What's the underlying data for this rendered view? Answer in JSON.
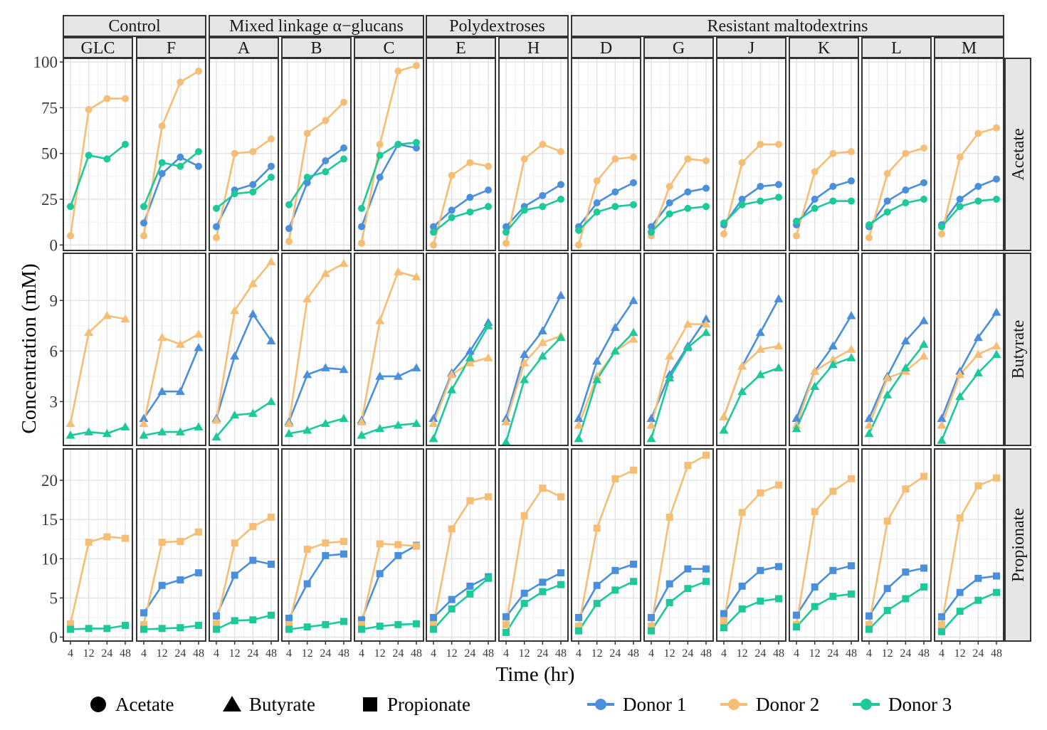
{
  "chart_data": {
    "type": "line",
    "xlabel": "Time (hr)",
    "ylabel": "Concentration (mM)",
    "x": [
      4,
      12,
      24,
      48
    ],
    "x_tick_labels": [
      "4",
      "12",
      "24",
      "48"
    ],
    "groups": [
      {
        "label": "Control",
        "columns": [
          "GLC",
          "F"
        ]
      },
      {
        "label": "Mixed linkage α−glucans",
        "columns": [
          "A",
          "B",
          "C"
        ]
      },
      {
        "label": "Polydextroses",
        "columns": [
          "E",
          "H"
        ]
      },
      {
        "label": "Resistant maltodextrins",
        "columns": [
          "D",
          "G",
          "J",
          "K",
          "L",
          "M"
        ]
      }
    ],
    "columns": [
      "GLC",
      "F",
      "A",
      "B",
      "C",
      "E",
      "H",
      "D",
      "G",
      "J",
      "K",
      "L",
      "M"
    ],
    "rows": [
      {
        "label": "Acetate",
        "shape": "circle",
        "ylim": [
          -3,
          102
        ],
        "yticks": [
          0,
          25,
          50,
          75,
          100
        ],
        "ytick_labels": [
          "0",
          "25",
          "50",
          "75",
          "100"
        ]
      },
      {
        "label": "Butyrate",
        "shape": "triangle",
        "ylim": [
          0.4,
          11.8
        ],
        "yticks": [
          3,
          6,
          9
        ],
        "ytick_labels": [
          "3",
          "6",
          "9"
        ]
      },
      {
        "label": "Propionate",
        "shape": "square",
        "ylim": [
          -0.5,
          24
        ],
        "yticks": [
          0,
          5,
          10,
          15,
          20
        ],
        "ytick_labels": [
          "0",
          "5",
          "10",
          "15",
          "20"
        ]
      }
    ],
    "donors": [
      {
        "name": "Donor 1",
        "color": "#4A8FDB"
      },
      {
        "name": "Donor 2",
        "color": "#F6BE75"
      },
      {
        "name": "Donor 3",
        "color": "#1DC99A"
      }
    ],
    "legend": {
      "shapes": [
        {
          "label": "Acetate",
          "shape": "circle"
        },
        {
          "label": "Butyrate",
          "shape": "triangle"
        },
        {
          "label": "Propionate",
          "shape": "square"
        }
      ],
      "placement": "bottom"
    },
    "grid": true,
    "data": {
      "Acetate": {
        "GLC": [
          null,
          [
            5,
            74,
            80,
            80
          ],
          [
            21,
            49,
            47,
            55
          ]
        ],
        "F": [
          [
            12,
            39,
            48,
            43
          ],
          [
            5,
            65,
            89,
            95
          ],
          [
            21,
            45,
            43,
            51
          ]
        ],
        "A": [
          [
            10,
            30,
            33,
            43
          ],
          [
            4,
            50,
            51,
            58
          ],
          [
            20,
            28,
            29,
            37
          ]
        ],
        "B": [
          [
            9,
            34,
            46,
            53
          ],
          [
            2,
            61,
            68,
            78
          ],
          [
            22,
            37,
            40,
            47
          ]
        ],
        "C": [
          [
            10,
            37,
            55,
            53
          ],
          [
            1,
            55,
            95,
            98
          ],
          [
            20,
            49,
            55,
            56
          ]
        ],
        "E": [
          [
            10,
            19,
            26,
            30
          ],
          [
            0,
            38,
            45,
            43
          ],
          [
            7,
            15,
            18,
            21
          ]
        ],
        "H": [
          [
            10,
            21,
            27,
            33
          ],
          [
            1,
            47,
            55,
            51
          ],
          [
            7,
            19,
            21,
            25
          ]
        ],
        "D": [
          [
            10,
            23,
            29,
            34
          ],
          [
            0,
            35,
            47,
            48
          ],
          [
            8,
            18,
            21,
            22
          ]
        ],
        "G": [
          [
            10,
            23,
            29,
            31
          ],
          [
            5,
            32,
            47,
            46
          ],
          [
            7,
            17,
            20,
            21
          ]
        ],
        "J": [
          [
            11,
            25,
            32,
            33
          ],
          [
            6,
            45,
            55,
            55
          ],
          [
            12,
            22,
            24,
            26
          ]
        ],
        "K": [
          [
            11,
            25,
            32,
            35
          ],
          [
            5,
            40,
            50,
            51
          ],
          [
            13,
            20,
            24,
            24
          ]
        ],
        "L": [
          [
            10,
            24,
            30,
            34
          ],
          [
            4,
            39,
            50,
            53
          ],
          [
            11,
            18,
            23,
            25
          ]
        ],
        "M": [
          [
            11,
            25,
            32,
            36
          ],
          [
            6,
            48,
            61,
            64
          ],
          [
            10,
            21,
            24,
            25
          ]
        ]
      },
      "Butyrate": {
        "GLC": [
          null,
          [
            1.7,
            7.1,
            8.1,
            7.9
          ],
          [
            1.0,
            1.2,
            1.1,
            1.5
          ]
        ],
        "F": [
          [
            2.0,
            3.6,
            3.6,
            6.2
          ],
          [
            1.7,
            6.8,
            6.4,
            7.0
          ],
          [
            1.0,
            1.2,
            1.2,
            1.5
          ]
        ],
        "A": [
          [
            2.0,
            5.7,
            8.2,
            6.6
          ],
          [
            1.9,
            8.4,
            10.0,
            11.3
          ],
          [
            0.9,
            2.2,
            2.3,
            3.0
          ]
        ],
        "B": [
          [
            1.8,
            4.6,
            5.0,
            4.9
          ],
          [
            1.7,
            9.1,
            10.6,
            11.2
          ],
          [
            1.1,
            1.3,
            1.7,
            2.0
          ]
        ],
        "C": [
          [
            1.9,
            4.5,
            4.5,
            5.0
          ],
          [
            1.8,
            7.8,
            10.7,
            10.4
          ],
          [
            1.0,
            1.4,
            1.6,
            1.7
          ]
        ],
        "E": [
          [
            2.0,
            4.7,
            6.0,
            7.7
          ],
          [
            1.7,
            4.6,
            5.3,
            5.6
          ],
          [
            0.8,
            3.7,
            5.6,
            7.5
          ]
        ],
        "H": [
          [
            2.0,
            5.8,
            7.2,
            9.3
          ],
          [
            1.8,
            5.3,
            6.5,
            6.9
          ],
          [
            0.6,
            4.3,
            5.7,
            6.8
          ]
        ],
        "D": [
          [
            2.0,
            5.4,
            7.4,
            9.0
          ],
          [
            1.6,
            4.5,
            6.0,
            6.7
          ],
          [
            0.8,
            4.3,
            6.0,
            7.1
          ]
        ],
        "G": [
          [
            2.0,
            4.6,
            6.3,
            7.9
          ],
          [
            1.6,
            5.7,
            7.6,
            7.6
          ],
          [
            0.8,
            4.4,
            6.2,
            7.1
          ]
        ],
        "J": [
          [
            2.1,
            5.1,
            7.1,
            9.1
          ],
          [
            2.1,
            5.1,
            6.1,
            6.3
          ],
          [
            1.3,
            3.6,
            4.6,
            5.0
          ]
        ],
        "K": [
          [
            2.0,
            4.8,
            6.3,
            8.1
          ],
          [
            1.6,
            4.8,
            5.5,
            6.1
          ],
          [
            1.4,
            3.9,
            5.2,
            5.6
          ]
        ],
        "L": [
          [
            2.0,
            4.5,
            6.6,
            7.8
          ],
          [
            1.6,
            4.4,
            4.8,
            5.7
          ],
          [
            1.1,
            3.4,
            5.0,
            6.4
          ]
        ],
        "M": [
          [
            2.0,
            4.8,
            6.8,
            8.3
          ],
          [
            1.6,
            4.6,
            5.8,
            6.3
          ],
          [
            0.7,
            3.3,
            4.7,
            5.8
          ]
        ]
      },
      "Propionate": {
        "GLC": [
          null,
          [
            1.7,
            12.1,
            12.8,
            12.6
          ],
          [
            1.0,
            1.1,
            1.1,
            1.5
          ]
        ],
        "F": [
          [
            3.1,
            6.6,
            7.3,
            8.2
          ],
          [
            1.6,
            12.1,
            12.2,
            13.4
          ],
          [
            1.0,
            1.1,
            1.2,
            1.5
          ]
        ],
        "A": [
          [
            2.7,
            7.9,
            9.8,
            9.3
          ],
          [
            1.7,
            12.0,
            14.1,
            15.3
          ],
          [
            1.0,
            2.1,
            2.2,
            2.8
          ]
        ],
        "B": [
          [
            2.4,
            6.8,
            10.4,
            10.6
          ],
          [
            1.6,
            11.2,
            12.0,
            12.2
          ],
          [
            1.0,
            1.3,
            1.6,
            2.0
          ]
        ],
        "C": [
          [
            2.2,
            8.1,
            10.4,
            11.7
          ],
          [
            1.6,
            11.9,
            11.8,
            11.6
          ],
          [
            1.0,
            1.4,
            1.6,
            1.7
          ]
        ],
        "E": [
          [
            2.5,
            4.8,
            6.5,
            7.7
          ],
          [
            1.6,
            13.8,
            17.4,
            17.9
          ],
          [
            1.0,
            3.6,
            5.5,
            7.5
          ]
        ],
        "H": [
          [
            2.6,
            5.6,
            7.0,
            8.2
          ],
          [
            1.6,
            15.5,
            19.0,
            17.9
          ],
          [
            0.6,
            4.3,
            5.8,
            6.7
          ]
        ],
        "D": [
          [
            2.5,
            6.6,
            8.5,
            9.3
          ],
          [
            1.4,
            13.9,
            20.2,
            21.3
          ],
          [
            0.8,
            4.3,
            6.0,
            7.1
          ]
        ],
        "G": [
          [
            2.5,
            6.8,
            8.7,
            8.7
          ],
          [
            1.4,
            15.3,
            21.9,
            23.2
          ],
          [
            0.8,
            4.4,
            6.2,
            7.1
          ]
        ],
        "J": [
          [
            3.0,
            6.5,
            8.5,
            9.0
          ],
          [
            2.1,
            15.9,
            18.4,
            19.4
          ],
          [
            1.2,
            3.6,
            4.6,
            4.9
          ]
        ],
        "K": [
          [
            2.8,
            6.4,
            8.5,
            9.1
          ],
          [
            1.6,
            16.0,
            18.6,
            20.2
          ],
          [
            1.3,
            3.9,
            5.2,
            5.5
          ]
        ],
        "L": [
          [
            2.7,
            6.2,
            8.3,
            8.8
          ],
          [
            1.6,
            14.8,
            18.9,
            20.5
          ],
          [
            1.0,
            3.4,
            4.9,
            6.4
          ]
        ],
        "M": [
          [
            2.6,
            5.7,
            7.5,
            7.8
          ],
          [
            1.6,
            15.2,
            19.3,
            20.3
          ],
          [
            0.7,
            3.3,
            4.7,
            5.7
          ]
        ]
      }
    }
  }
}
